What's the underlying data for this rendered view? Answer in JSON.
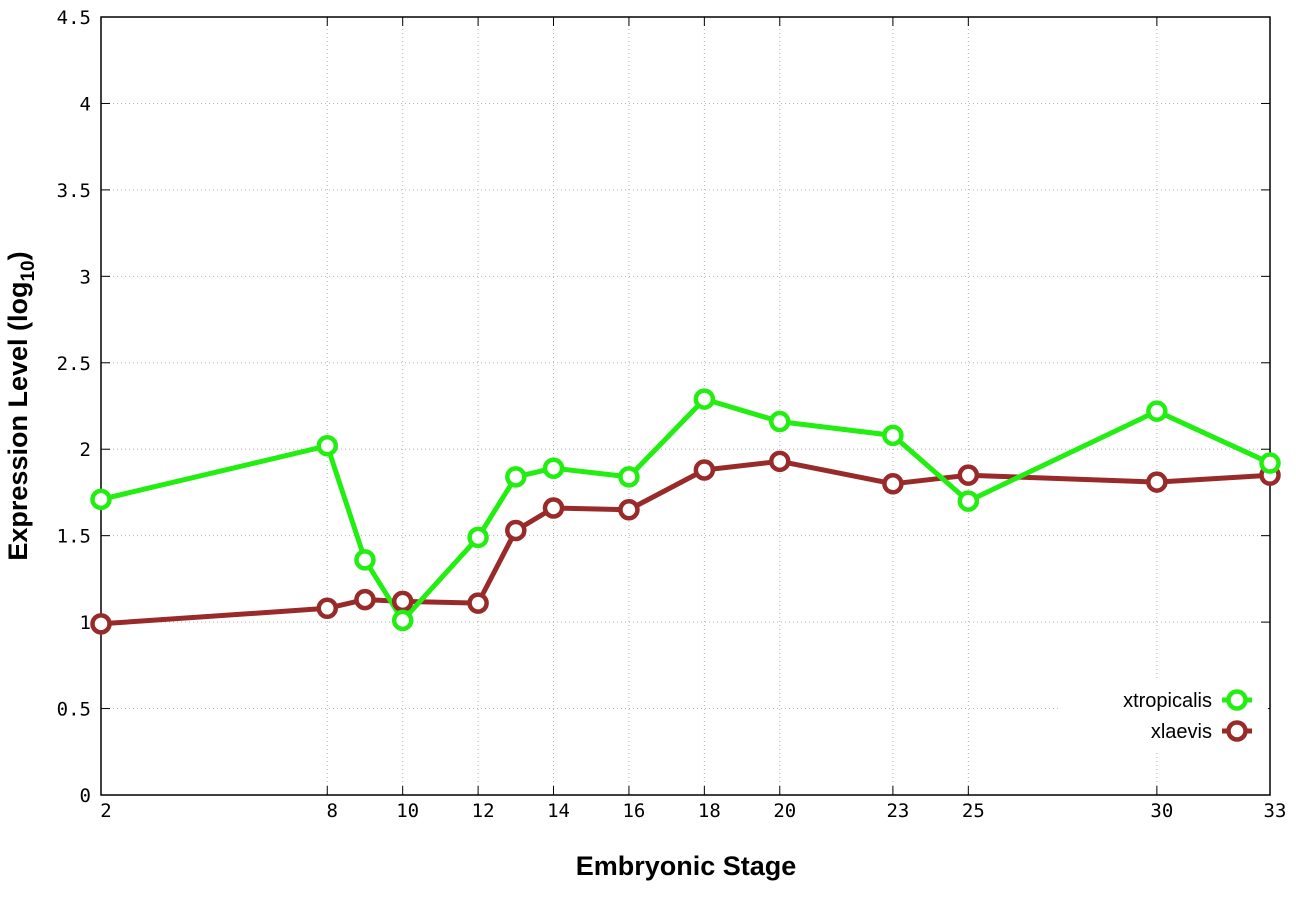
{
  "chart_data": {
    "type": "line",
    "title": "",
    "xlabel": "Embryonic Stage",
    "ylabel": "Expression Level (log",
    "ylabel_subscript": "10",
    "ylabel_close": ")",
    "xlim": [
      2,
      33
    ],
    "ylim": [
      0,
      4.5
    ],
    "x_ticks": [
      2,
      8,
      10,
      12,
      14,
      16,
      18,
      20,
      23,
      25,
      30,
      33
    ],
    "x_tick_labels": [
      "2",
      "8",
      "10",
      "12",
      "14",
      "16",
      "18",
      "20",
      "23",
      "25",
      "30",
      "33"
    ],
    "y_ticks": [
      0,
      0.5,
      1,
      1.5,
      2,
      2.5,
      3,
      3.5,
      4,
      4.5
    ],
    "y_tick_labels": [
      "0",
      "0.5",
      "1",
      "1.5",
      "2",
      "2.5",
      "3",
      "3.5",
      "4",
      "4.5"
    ],
    "grid": true,
    "legend_position": "bottom-right",
    "x": [
      2,
      8,
      9,
      10,
      12,
      13,
      14,
      16,
      18,
      20,
      23,
      25,
      30,
      33
    ],
    "series": [
      {
        "name": "xtropicalis",
        "color": "#22ee11",
        "values": [
          1.71,
          2.02,
          1.36,
          1.01,
          1.49,
          1.84,
          1.89,
          1.84,
          2.29,
          2.16,
          2.08,
          1.7,
          2.22,
          1.92
        ]
      },
      {
        "name": "xlaevis",
        "color": "#992a2a",
        "values": [
          0.99,
          1.08,
          1.13,
          1.12,
          1.11,
          1.53,
          1.66,
          1.65,
          1.88,
          1.93,
          1.8,
          1.85,
          1.81,
          1.85
        ]
      }
    ]
  }
}
